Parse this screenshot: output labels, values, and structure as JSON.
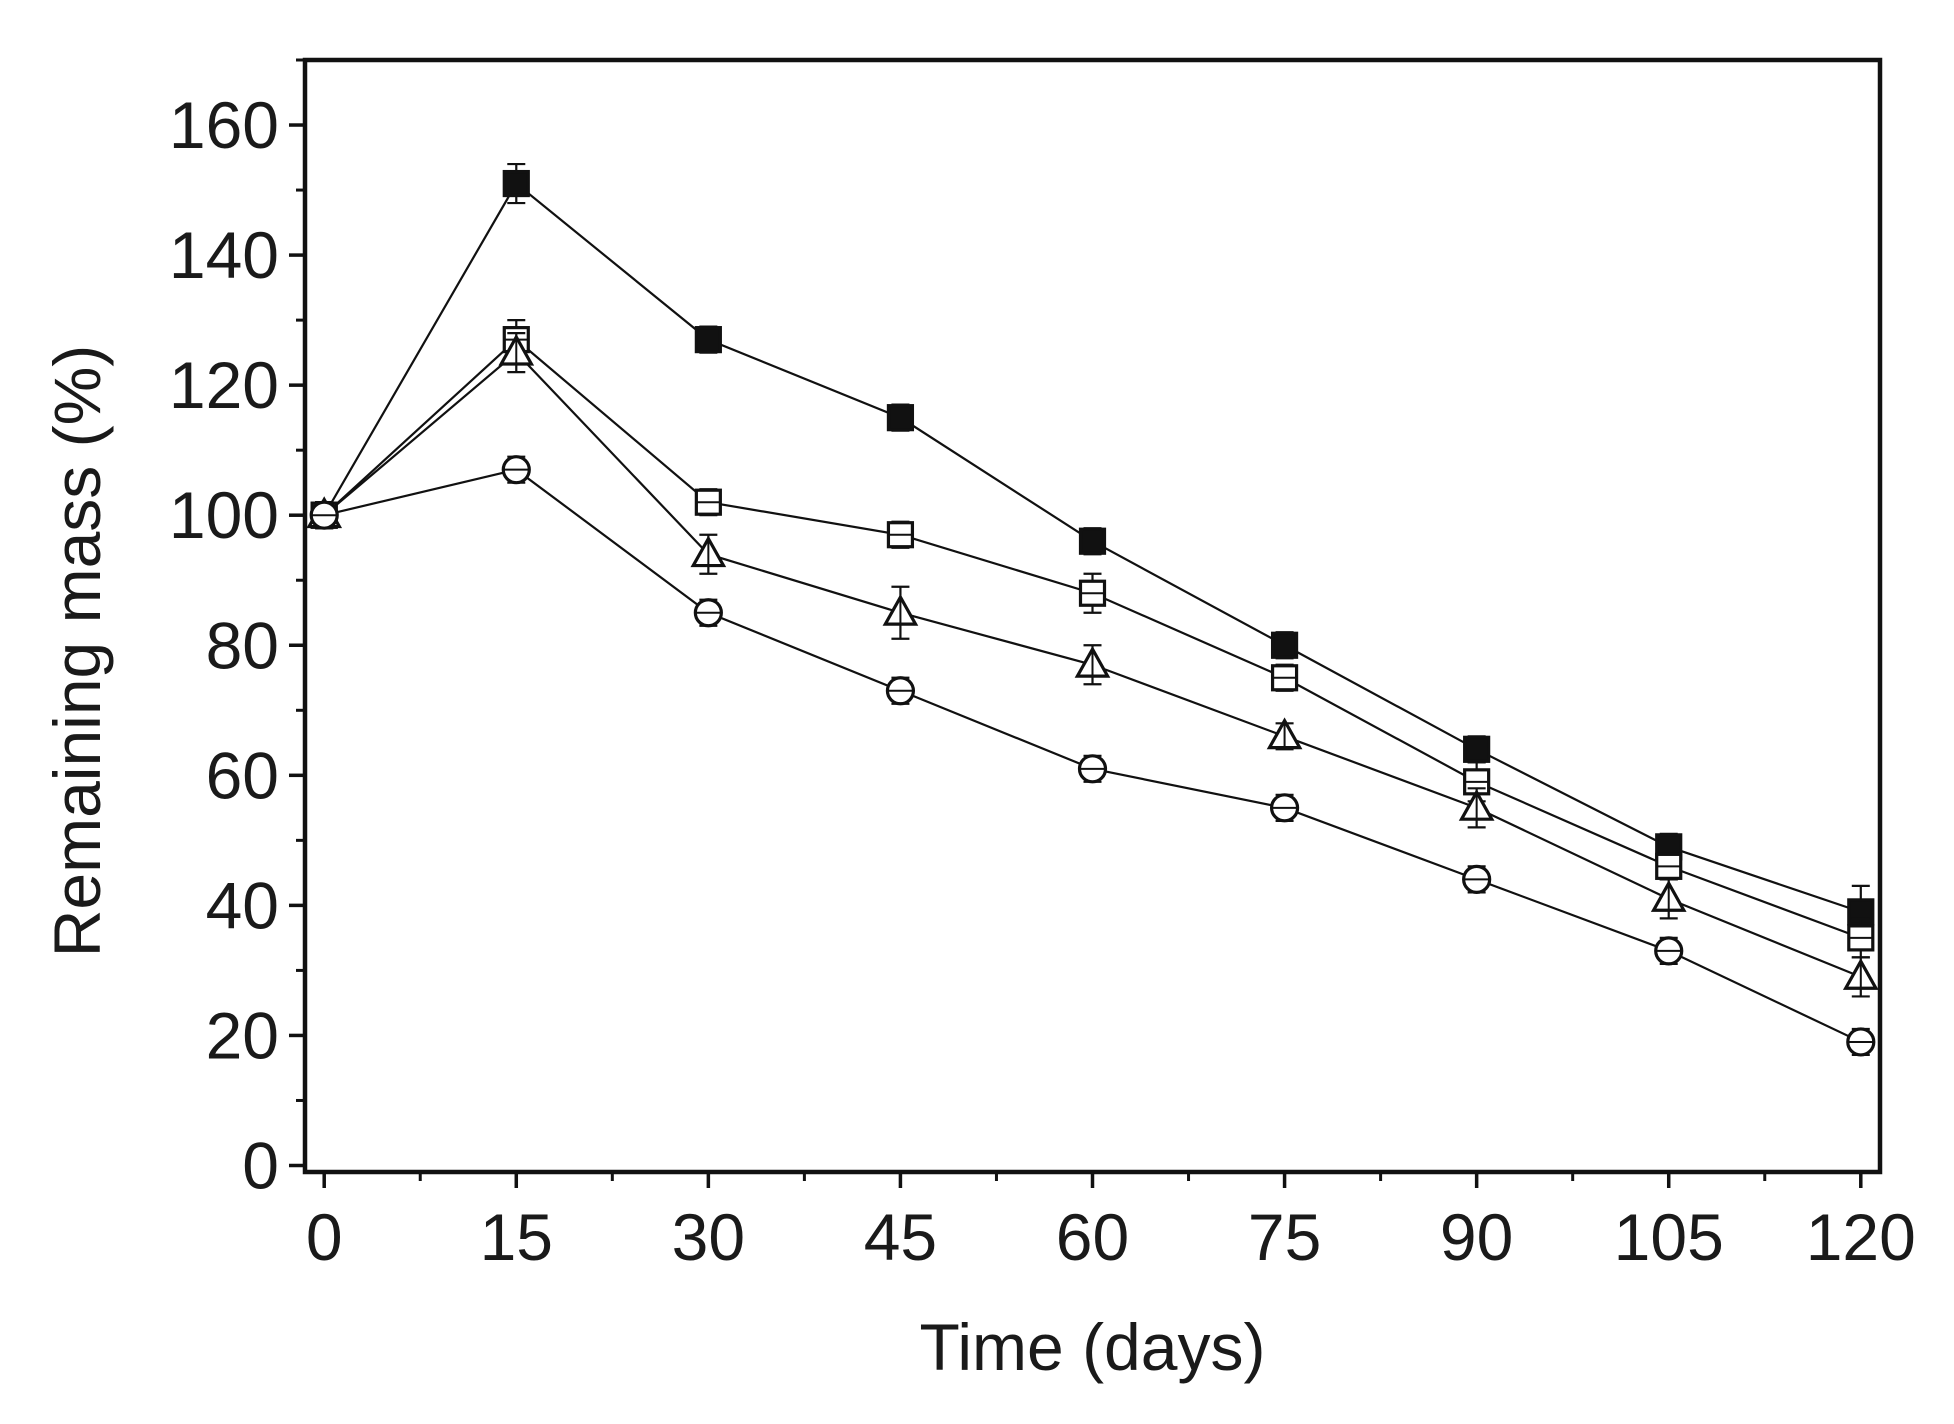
{
  "chart_data": {
    "type": "line",
    "title": "",
    "xlabel": "Time (days)",
    "ylabel": "Remaining mass (%)",
    "x": [
      0,
      15,
      30,
      45,
      60,
      75,
      90,
      105,
      120
    ],
    "x_tick_labels": [
      "0",
      "15",
      "30",
      "45",
      "60",
      "75",
      "90",
      "105",
      "120"
    ],
    "y_tick_labels": [
      "0",
      "20",
      "40",
      "60",
      "80",
      "100",
      "120",
      "140",
      "160"
    ],
    "xlim": [
      -1.5,
      121.5
    ],
    "ylim": [
      -1,
      170
    ],
    "y_ticks": [
      0,
      20,
      40,
      60,
      80,
      100,
      120,
      140,
      160
    ],
    "grid": false,
    "legend": "none",
    "series": [
      {
        "marker": "filled-square",
        "values": [
          100,
          151,
          127,
          115,
          96,
          80,
          64,
          49,
          39
        ],
        "errors": [
          2,
          3,
          2,
          2,
          2,
          2,
          2,
          2,
          4
        ]
      },
      {
        "marker": "open-square",
        "values": [
          100,
          127,
          102,
          97,
          88,
          75,
          59,
          46,
          35
        ],
        "errors": [
          2,
          3,
          2,
          2,
          3,
          2,
          3,
          2,
          3
        ]
      },
      {
        "marker": "open-triangle",
        "values": [
          100,
          125,
          94,
          85,
          77,
          66,
          55,
          41,
          29
        ],
        "errors": [
          2,
          3,
          3,
          4,
          3,
          2,
          3,
          3,
          3
        ]
      },
      {
        "marker": "open-circle",
        "values": [
          100,
          107,
          85,
          73,
          61,
          55,
          44,
          33,
          19
        ],
        "errors": [
          2,
          2,
          2,
          2,
          2,
          2,
          2,
          2,
          2
        ]
      }
    ]
  }
}
